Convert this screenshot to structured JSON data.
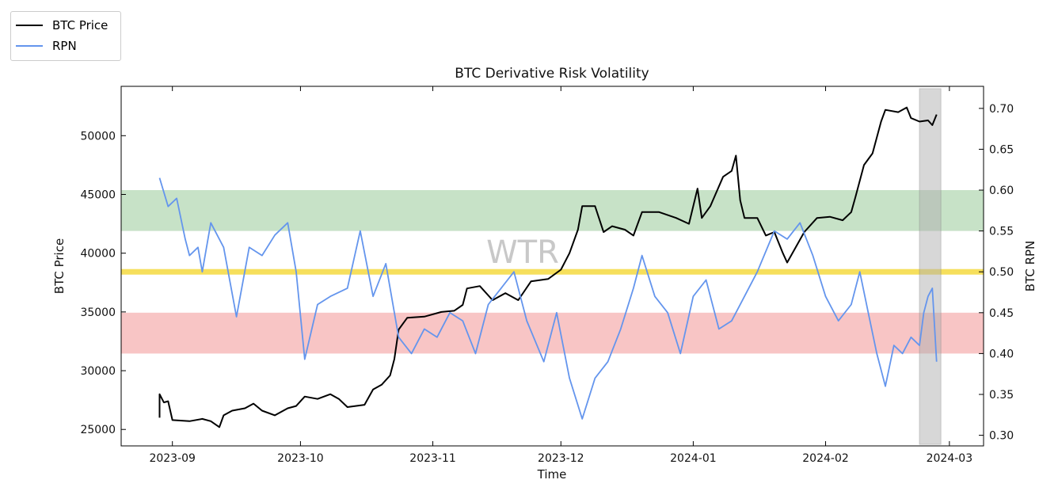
{
  "chart_data": {
    "type": "line",
    "title": "BTC Derivative Risk Volatility",
    "xlabel": "Time",
    "ylabel": "BTC Price",
    "ylabel_right": "BTC RPN",
    "watermark": "WTR",
    "xlim": [
      "2023-08-20",
      "2024-03-09"
    ],
    "ylim": [
      23600,
      54200
    ],
    "ylim_right": [
      0.287,
      0.727
    ],
    "x_ticks": [
      "2023-09",
      "2023-10",
      "2023-11",
      "2023-12",
      "2024-01",
      "2024-02",
      "2024-03"
    ],
    "y_ticks": [
      "25000",
      "30000",
      "35000",
      "40000",
      "45000",
      "50000"
    ],
    "y_ticks_right": [
      "0.30",
      "0.35",
      "0.40",
      "0.45",
      "0.50",
      "0.55",
      "0.60",
      "0.65",
      "0.70"
    ],
    "legend": {
      "position": "top-left",
      "entries": [
        "BTC Price",
        "RPN"
      ]
    },
    "colors": {
      "btc": "#000000",
      "rpn": "#6495ED",
      "green_band": "#a9d3a9",
      "yellow_line": "#f5dc4a",
      "red_band": "#f4a6a6",
      "highlight": "#b0b0b0"
    },
    "bands": [
      {
        "name": "green",
        "axis": "right",
        "range": [
          0.55,
          0.6
        ]
      },
      {
        "name": "yellow",
        "axis": "right",
        "range": [
          0.497,
          0.503
        ]
      },
      {
        "name": "red",
        "axis": "right",
        "range": [
          0.4,
          0.45
        ]
      }
    ],
    "highlight_range": [
      "2024-02-23",
      "2024-02-28"
    ],
    "series": [
      {
        "name": "BTC Price",
        "axis": "left",
        "points": [
          [
            "2023-08-29",
            26000
          ],
          [
            "2023-08-29",
            28000
          ],
          [
            "2023-08-30",
            27300
          ],
          [
            "2023-08-31",
            27400
          ],
          [
            "2023-09-01",
            25800
          ],
          [
            "2023-09-05",
            25700
          ],
          [
            "2023-09-08",
            25900
          ],
          [
            "2023-09-10",
            25700
          ],
          [
            "2023-09-12",
            25200
          ],
          [
            "2023-09-13",
            26200
          ],
          [
            "2023-09-15",
            26600
          ],
          [
            "2023-09-18",
            26800
          ],
          [
            "2023-09-20",
            27200
          ],
          [
            "2023-09-22",
            26600
          ],
          [
            "2023-09-25",
            26200
          ],
          [
            "2023-09-28",
            26800
          ],
          [
            "2023-09-30",
            27000
          ],
          [
            "2023-10-02",
            27800
          ],
          [
            "2023-10-05",
            27600
          ],
          [
            "2023-10-08",
            28000
          ],
          [
            "2023-10-10",
            27600
          ],
          [
            "2023-10-12",
            26900
          ],
          [
            "2023-10-16",
            27100
          ],
          [
            "2023-10-18",
            28400
          ],
          [
            "2023-10-20",
            28800
          ],
          [
            "2023-10-22",
            29600
          ],
          [
            "2023-10-23",
            31000
          ],
          [
            "2023-10-24",
            33500
          ],
          [
            "2023-10-26",
            34500
          ],
          [
            "2023-10-30",
            34600
          ],
          [
            "2023-11-03",
            35000
          ],
          [
            "2023-11-06",
            35100
          ],
          [
            "2023-11-08",
            35600
          ],
          [
            "2023-11-09",
            37000
          ],
          [
            "2023-11-12",
            37200
          ],
          [
            "2023-11-15",
            36000
          ],
          [
            "2023-11-18",
            36600
          ],
          [
            "2023-11-21",
            36000
          ],
          [
            "2023-11-24",
            37600
          ],
          [
            "2023-11-28",
            37800
          ],
          [
            "2023-12-01",
            38600
          ],
          [
            "2023-12-03",
            40000
          ],
          [
            "2023-12-05",
            42000
          ],
          [
            "2023-12-06",
            44000
          ],
          [
            "2023-12-09",
            44000
          ],
          [
            "2023-12-11",
            41800
          ],
          [
            "2023-12-13",
            42300
          ],
          [
            "2023-12-16",
            42000
          ],
          [
            "2023-12-18",
            41500
          ],
          [
            "2023-12-20",
            43500
          ],
          [
            "2023-12-24",
            43500
          ],
          [
            "2023-12-28",
            43000
          ],
          [
            "2023-12-31",
            42500
          ],
          [
            "2024-01-02",
            45500
          ],
          [
            "2024-01-03",
            43000
          ],
          [
            "2024-01-05",
            44000
          ],
          [
            "2024-01-08",
            46500
          ],
          [
            "2024-01-10",
            47000
          ],
          [
            "2024-01-11",
            48300
          ],
          [
            "2024-01-12",
            44500
          ],
          [
            "2024-01-13",
            43000
          ],
          [
            "2024-01-16",
            43000
          ],
          [
            "2024-01-18",
            41500
          ],
          [
            "2024-01-20",
            41800
          ],
          [
            "2024-01-22",
            40000
          ],
          [
            "2024-01-23",
            39200
          ],
          [
            "2024-01-25",
            40500
          ],
          [
            "2024-01-27",
            41800
          ],
          [
            "2024-01-30",
            43000
          ],
          [
            "2024-02-02",
            43100
          ],
          [
            "2024-02-05",
            42800
          ],
          [
            "2024-02-07",
            43500
          ],
          [
            "2024-02-08",
            44800
          ],
          [
            "2024-02-10",
            47500
          ],
          [
            "2024-02-12",
            48500
          ],
          [
            "2024-02-14",
            51200
          ],
          [
            "2024-02-15",
            52200
          ],
          [
            "2024-02-18",
            52000
          ],
          [
            "2024-02-20",
            52400
          ],
          [
            "2024-02-21",
            51500
          ],
          [
            "2024-02-23",
            51200
          ],
          [
            "2024-02-25",
            51300
          ],
          [
            "2024-02-26",
            50900
          ],
          [
            "2024-02-27",
            51800
          ]
        ]
      },
      {
        "name": "RPN",
        "axis": "right",
        "points": [
          [
            "2023-08-29",
            0.615
          ],
          [
            "2023-08-31",
            0.58
          ],
          [
            "2023-09-02",
            0.59
          ],
          [
            "2023-09-04",
            0.54
          ],
          [
            "2023-09-05",
            0.52
          ],
          [
            "2023-09-07",
            0.53
          ],
          [
            "2023-09-08",
            0.5
          ],
          [
            "2023-09-10",
            0.56
          ],
          [
            "2023-09-13",
            0.53
          ],
          [
            "2023-09-16",
            0.445
          ],
          [
            "2023-09-19",
            0.53
          ],
          [
            "2023-09-22",
            0.52
          ],
          [
            "2023-09-25",
            0.545
          ],
          [
            "2023-09-28",
            0.56
          ],
          [
            "2023-09-30",
            0.5
          ],
          [
            "2023-10-02",
            0.393
          ],
          [
            "2023-10-05",
            0.46
          ],
          [
            "2023-10-08",
            0.47
          ],
          [
            "2023-10-12",
            0.48
          ],
          [
            "2023-10-15",
            0.55
          ],
          [
            "2023-10-18",
            0.47
          ],
          [
            "2023-10-21",
            0.51
          ],
          [
            "2023-10-24",
            0.42
          ],
          [
            "2023-10-27",
            0.4
          ],
          [
            "2023-10-30",
            0.43
          ],
          [
            "2023-11-02",
            0.42
          ],
          [
            "2023-11-05",
            0.45
          ],
          [
            "2023-11-08",
            0.44
          ],
          [
            "2023-11-11",
            0.4
          ],
          [
            "2023-11-14",
            0.46
          ],
          [
            "2023-11-17",
            0.48
          ],
          [
            "2023-11-20",
            0.5
          ],
          [
            "2023-11-23",
            0.44
          ],
          [
            "2023-11-27",
            0.39
          ],
          [
            "2023-11-30",
            0.45
          ],
          [
            "2023-12-03",
            0.37
          ],
          [
            "2023-12-06",
            0.32
          ],
          [
            "2023-12-09",
            0.37
          ],
          [
            "2023-12-12",
            0.39
          ],
          [
            "2023-12-15",
            0.43
          ],
          [
            "2023-12-18",
            0.48
          ],
          [
            "2023-12-20",
            0.52
          ],
          [
            "2023-12-23",
            0.47
          ],
          [
            "2023-12-26",
            0.45
          ],
          [
            "2023-12-29",
            0.4
          ],
          [
            "2024-01-01",
            0.47
          ],
          [
            "2024-01-04",
            0.49
          ],
          [
            "2024-01-07",
            0.43
          ],
          [
            "2024-01-10",
            0.44
          ],
          [
            "2024-01-13",
            0.47
          ],
          [
            "2024-01-16",
            0.5
          ],
          [
            "2024-01-20",
            0.55
          ],
          [
            "2024-01-23",
            0.54
          ],
          [
            "2024-01-26",
            0.56
          ],
          [
            "2024-01-29",
            0.52
          ],
          [
            "2024-02-01",
            0.47
          ],
          [
            "2024-02-04",
            0.44
          ],
          [
            "2024-02-07",
            0.46
          ],
          [
            "2024-02-09",
            0.5
          ],
          [
            "2024-02-11",
            0.45
          ],
          [
            "2024-02-13",
            0.4
          ],
          [
            "2024-02-15",
            0.36
          ],
          [
            "2024-02-17",
            0.41
          ],
          [
            "2024-02-19",
            0.4
          ],
          [
            "2024-02-21",
            0.42
          ],
          [
            "2024-02-23",
            0.41
          ],
          [
            "2024-02-24",
            0.45
          ],
          [
            "2024-02-25",
            0.47
          ],
          [
            "2024-02-26",
            0.48
          ],
          [
            "2024-02-27",
            0.39
          ]
        ]
      }
    ]
  }
}
